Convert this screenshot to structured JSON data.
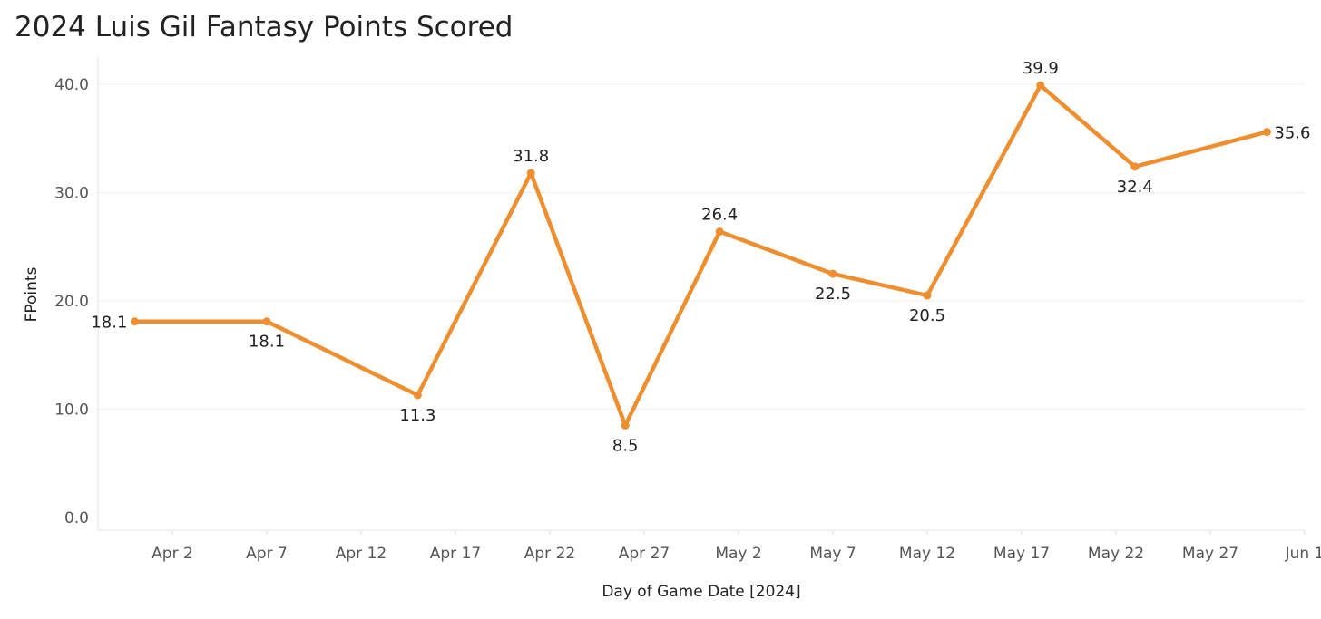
{
  "chart_data": {
    "type": "line",
    "title": "2024 Luis Gil Fantasy Points Scored",
    "xlabel": "Day of Game Date [2024]",
    "ylabel": "FPoints",
    "ylim": [
      0,
      40
    ],
    "yticks": [
      "0.0",
      "10.0",
      "20.0",
      "30.0",
      "40.0"
    ],
    "xticks": [
      {
        "date": "2024-04-02",
        "label": "Apr 2"
      },
      {
        "date": "2024-04-07",
        "label": "Apr 7"
      },
      {
        "date": "2024-04-12",
        "label": "Apr 12"
      },
      {
        "date": "2024-04-17",
        "label": "Apr 17"
      },
      {
        "date": "2024-04-22",
        "label": "Apr 22"
      },
      {
        "date": "2024-04-27",
        "label": "Apr 27"
      },
      {
        "date": "2024-05-02",
        "label": "May 2"
      },
      {
        "date": "2024-05-07",
        "label": "May 7"
      },
      {
        "date": "2024-05-12",
        "label": "May 12"
      },
      {
        "date": "2024-05-17",
        "label": "May 17"
      },
      {
        "date": "2024-05-22",
        "label": "May 22"
      },
      {
        "date": "2024-05-27",
        "label": "May 27"
      },
      {
        "date": "2024-06-01",
        "label": "Jun 1"
      }
    ],
    "grid": true,
    "color": "#EE8E2E",
    "series": [
      {
        "points": [
          {
            "date": "2024-03-31",
            "value": 18.1,
            "label": "18.1"
          },
          {
            "date": "2024-04-07",
            "value": 18.1,
            "label": "18.1"
          },
          {
            "date": "2024-04-15",
            "value": 11.3,
            "label": "11.3"
          },
          {
            "date": "2024-04-21",
            "value": 31.8,
            "label": "31.8"
          },
          {
            "date": "2024-04-26",
            "value": 8.5,
            "label": "8.5"
          },
          {
            "date": "2024-05-01",
            "value": 26.4,
            "label": "26.4"
          },
          {
            "date": "2024-05-07",
            "value": 22.5,
            "label": "22.5"
          },
          {
            "date": "2024-05-12",
            "value": 20.5,
            "label": "20.5"
          },
          {
            "date": "2024-05-18",
            "value": 39.9,
            "label": "39.9"
          },
          {
            "date": "2024-05-23",
            "value": 32.4,
            "label": "32.4"
          },
          {
            "date": "2024-05-30",
            "value": 35.6,
            "label": "35.6"
          }
        ]
      }
    ]
  }
}
